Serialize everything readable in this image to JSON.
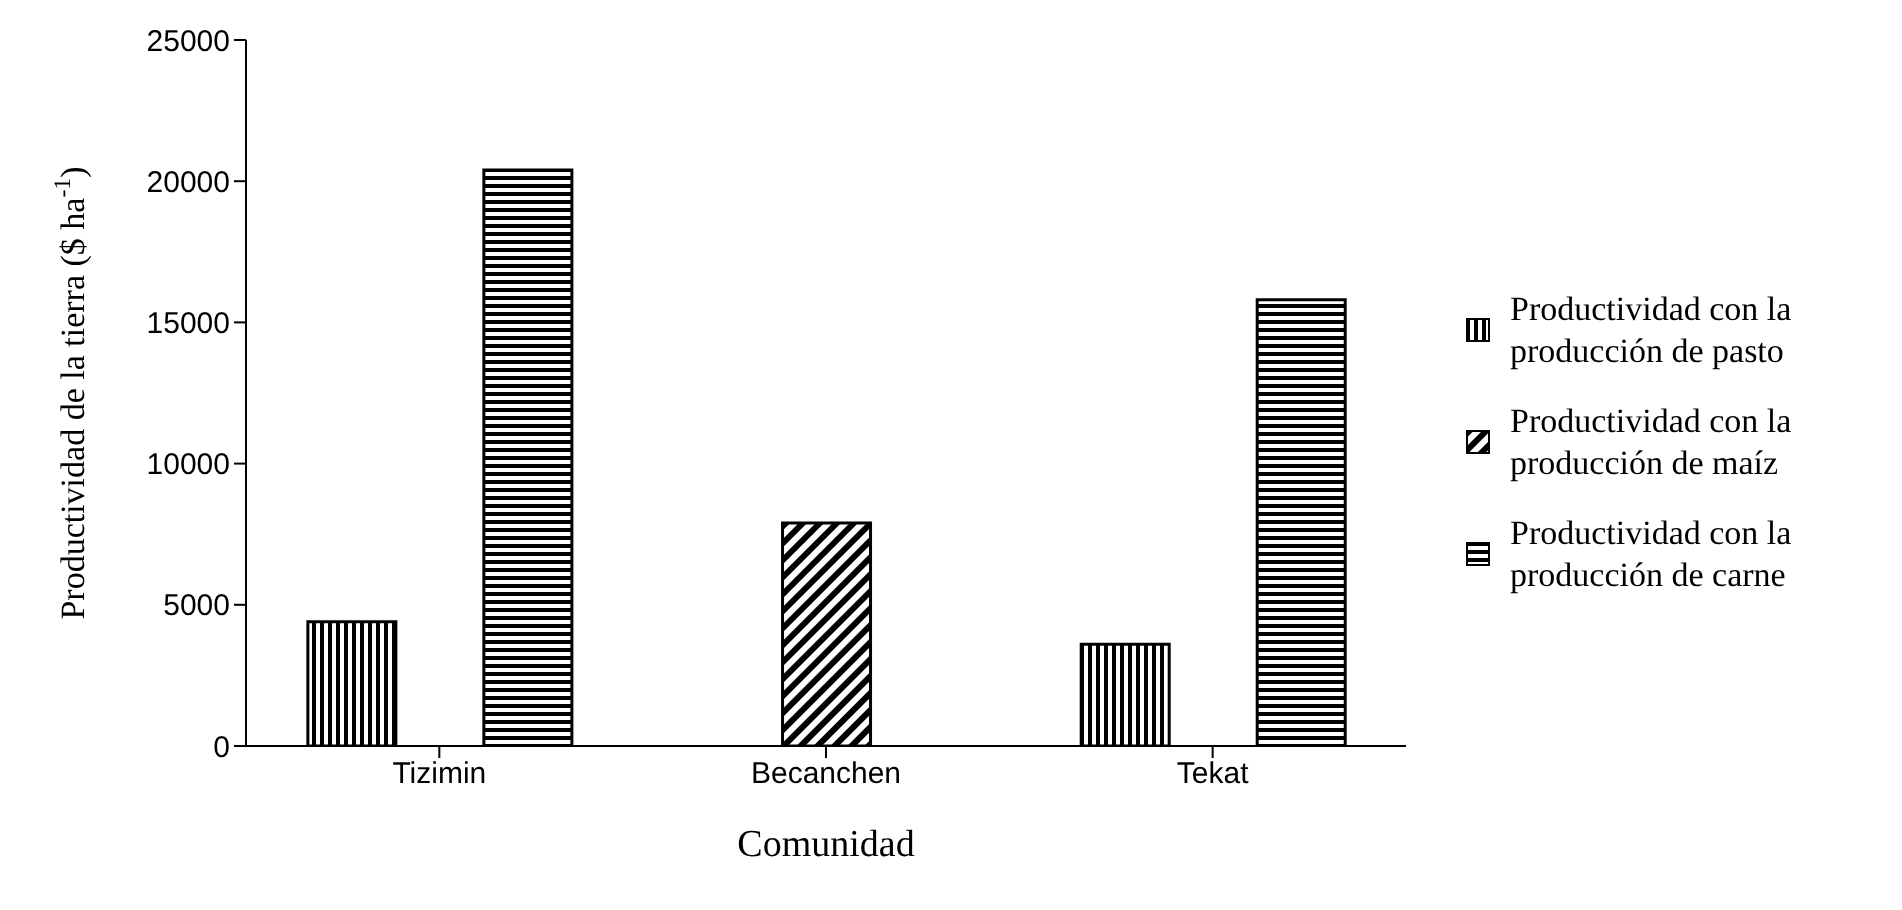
{
  "chart_data": {
    "type": "bar",
    "xlabel": "Comunidad",
    "ylabel": "Productividad de la tierra ($ ha$^{-1}$)",
    "categories": [
      "Tizimin",
      "Becanchen",
      "Tekat"
    ],
    "series": [
      {
        "name": "Productividad con la producción de pasto",
        "color": "#000000",
        "values": [
          4400,
          null,
          3600
        ]
      },
      {
        "name": "Productividad con la producción de maíz",
        "color": "#000000",
        "values": [
          null,
          7900,
          null
        ]
      },
      {
        "name": "Productividad con la producción de carne",
        "color": "#000000",
        "values": [
          20400,
          null,
          15800
        ]
      }
    ],
    "ylim": [
      0,
      25000
    ],
    "yticks": [
      0,
      5000,
      10000,
      15000,
      20000,
      25000
    ],
    "grid": false,
    "legend": "right"
  }
}
